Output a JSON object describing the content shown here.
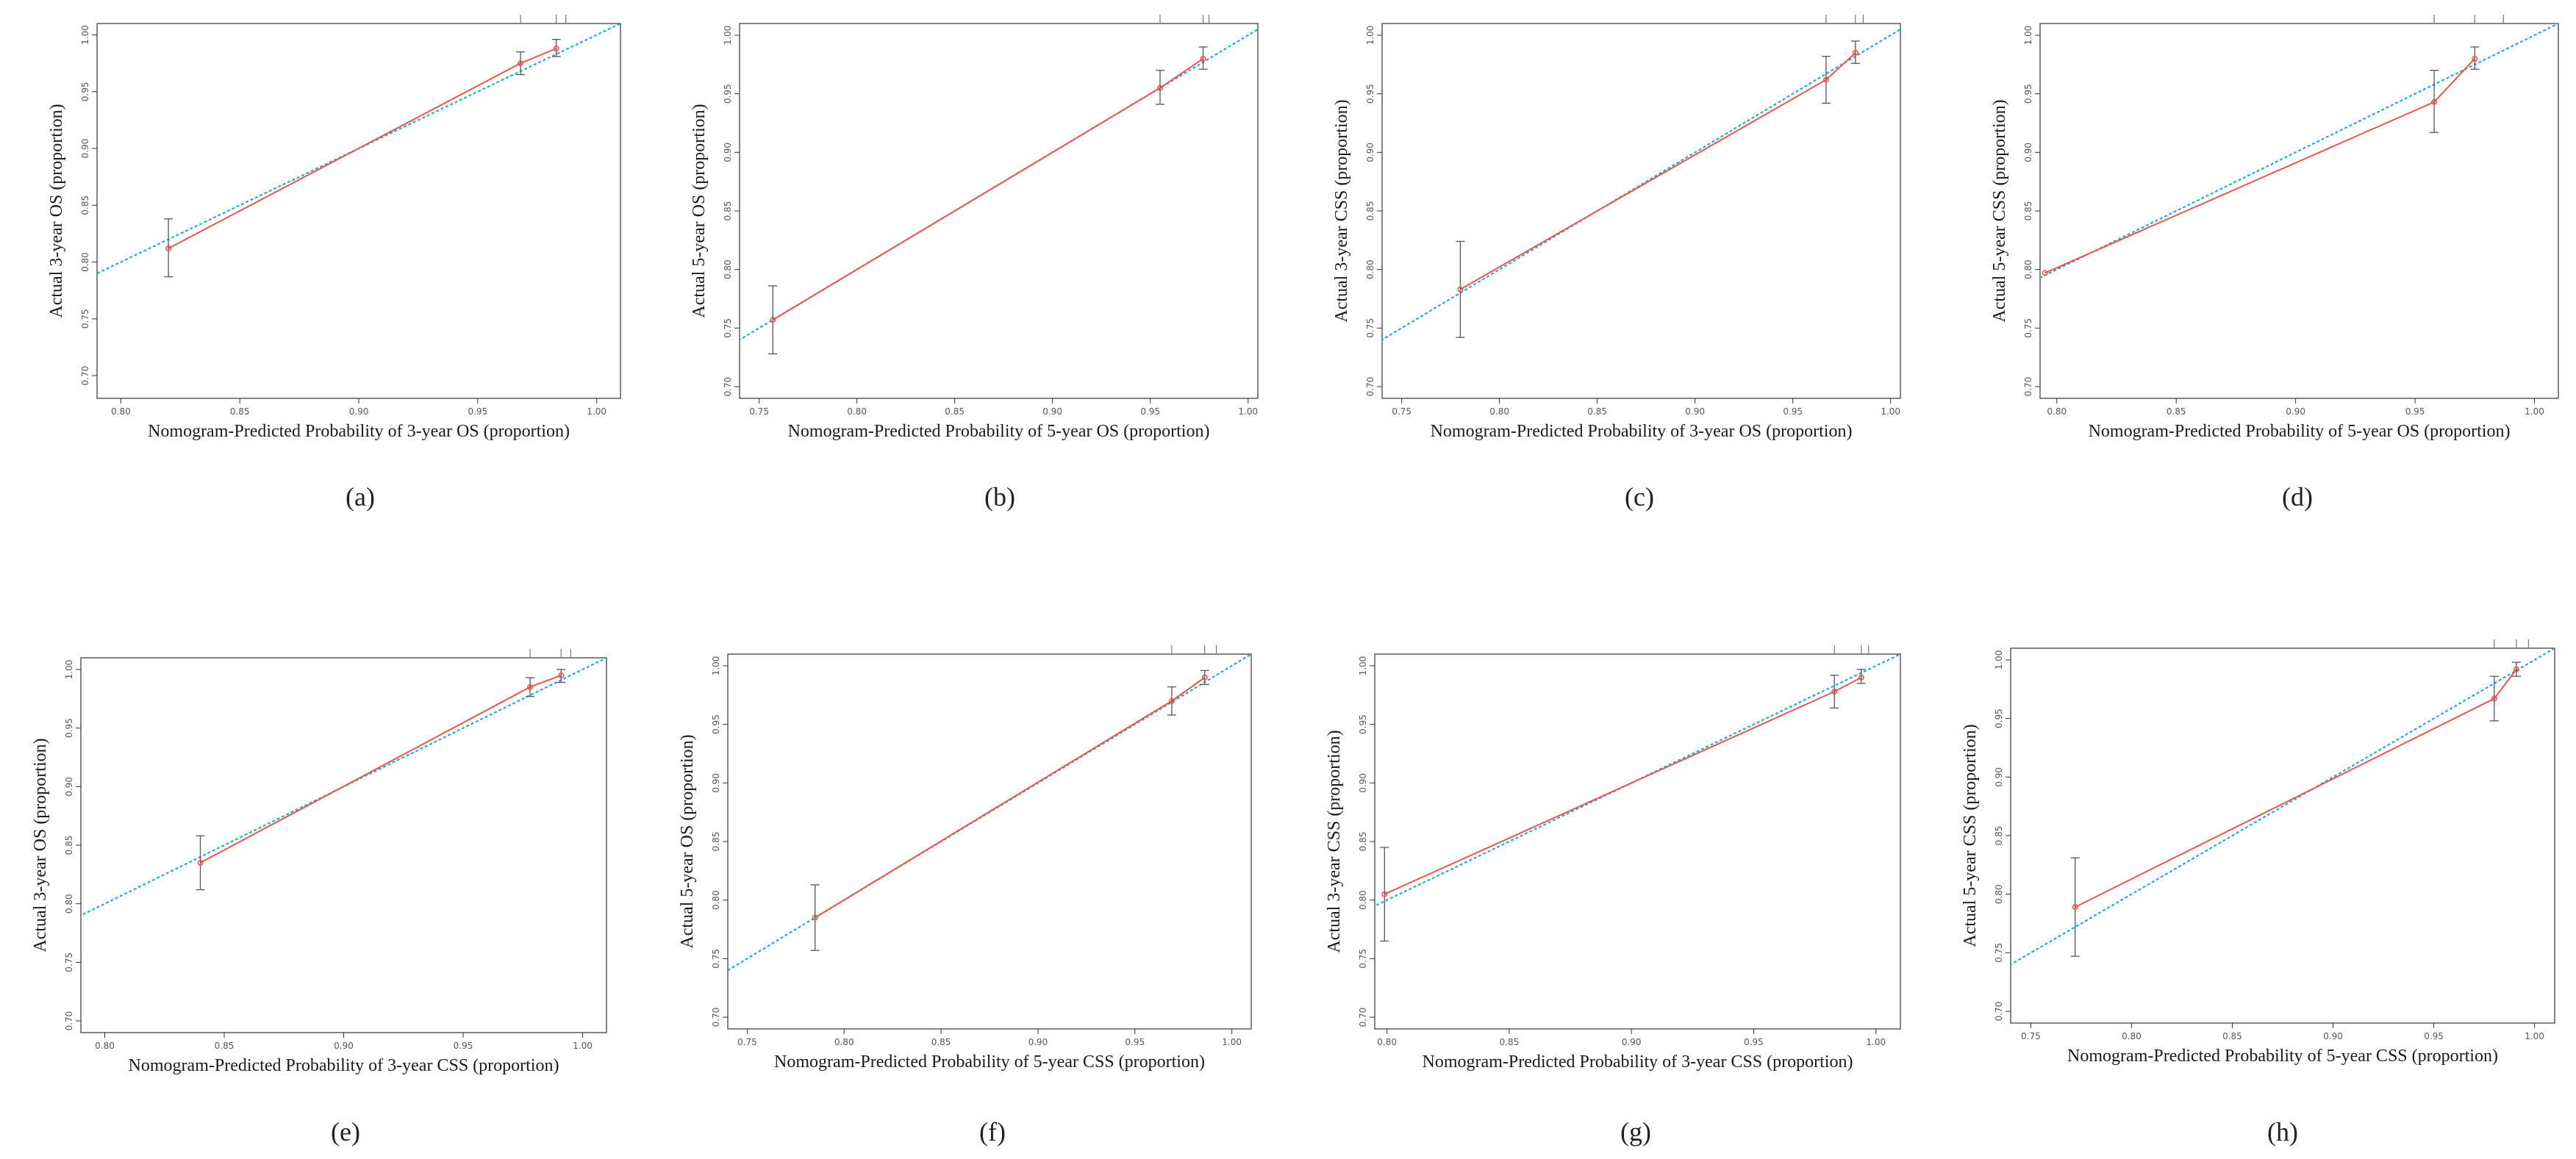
{
  "colors": {
    "ideal_line": "#2aa7d6",
    "calibration_line": "#e8564f",
    "error_bar": "#555555",
    "axis": "#333333",
    "text": "#1a1a1a"
  },
  "chart_data": [
    {
      "type": "line",
      "panel_label": "(a)",
      "xlabel": "Nomogram-Predicted Probability of 3-year OS (proportion)",
      "ylabel": "Actual 3-year OS (proportion)",
      "xlim": [
        0.79,
        1.01
      ],
      "ylim": [
        0.68,
        1.01
      ],
      "xticks": [
        "0.80",
        "0.85",
        "0.90",
        "0.95",
        "1.00"
      ],
      "yticks": [
        "0.70",
        "0.75",
        "0.80",
        "0.85",
        "0.90",
        "0.95",
        "1.00"
      ],
      "calibration": {
        "x": [
          0.82,
          0.968,
          0.983
        ],
        "y": [
          0.812,
          0.975,
          0.988
        ],
        "err_low": [
          0.787,
          0.965,
          0.981
        ],
        "err_high": [
          0.838,
          0.985,
          0.996
        ]
      },
      "rug": [
        0.968,
        0.983,
        0.987
      ]
    },
    {
      "type": "line",
      "panel_label": "(b)",
      "xlabel": "Nomogram-Predicted Probability of 5-year OS (proportion)",
      "ylabel": "Actual 5-year OS (proportion)",
      "xlim": [
        0.74,
        1.005
      ],
      "ylim": [
        0.69,
        1.01
      ],
      "xticks": [
        "0.75",
        "0.80",
        "0.85",
        "0.90",
        "0.95",
        "1.00"
      ],
      "yticks": [
        "0.70",
        "0.75",
        "0.80",
        "0.85",
        "0.90",
        "0.95",
        "1.00"
      ],
      "calibration": {
        "x": [
          0.757,
          0.955,
          0.977
        ],
        "y": [
          0.757,
          0.955,
          0.98
        ],
        "err_low": [
          0.728,
          0.941,
          0.971
        ],
        "err_high": [
          0.786,
          0.97,
          0.99
        ]
      },
      "rug": [
        0.955,
        0.977,
        0.98
      ]
    },
    {
      "type": "line",
      "panel_label": "(c)",
      "xlabel": "Nomogram-Predicted Probability of 3-year OS (proportion)",
      "ylabel": "Actual 3-year CSS (proportion)",
      "xlim": [
        0.74,
        1.005
      ],
      "ylim": [
        0.69,
        1.01
      ],
      "xticks": [
        "0.75",
        "0.80",
        "0.85",
        "0.90",
        "0.95",
        "1.00"
      ],
      "yticks": [
        "0.70",
        "0.75",
        "0.80",
        "0.85",
        "0.90",
        "0.95",
        "1.00"
      ],
      "calibration": {
        "x": [
          0.78,
          0.967,
          0.982
        ],
        "y": [
          0.783,
          0.962,
          0.985
        ],
        "err_low": [
          0.742,
          0.942,
          0.976
        ],
        "err_high": [
          0.824,
          0.982,
          0.995
        ]
      },
      "rug": [
        0.967,
        0.982,
        0.986
      ]
    },
    {
      "type": "line",
      "panel_label": "(d)",
      "xlabel": "Nomogram-Predicted Probability of 5-year OS (proportion)",
      "ylabel": "Actual 5-year CSS (proportion)",
      "xlim": [
        0.793,
        1.01
      ],
      "ylim": [
        0.69,
        1.01
      ],
      "xticks": [
        "0.80",
        "0.85",
        "0.90",
        "0.95",
        "1.00"
      ],
      "yticks": [
        "0.70",
        "0.75",
        "0.80",
        "0.85",
        "0.90",
        "0.95",
        "1.00"
      ],
      "calibration": {
        "x": [
          0.795,
          0.958,
          0.975
        ],
        "y": [
          0.797,
          0.943,
          0.98
        ],
        "err_low": [
          0.797,
          0.917,
          0.971
        ],
        "err_high": [
          0.797,
          0.97,
          0.99
        ]
      },
      "rug": [
        0.958,
        0.975,
        0.987
      ]
    },
    {
      "type": "line",
      "panel_label": "(e)",
      "xlabel": "Nomogram-Predicted Probability of 3-year CSS (proportion)",
      "ylabel": "Actual 3-year OS (proportion)",
      "xlim": [
        0.79,
        1.01
      ],
      "ylim": [
        0.69,
        1.01
      ],
      "xticks": [
        "0.80",
        "0.85",
        "0.90",
        "0.95",
        "1.00"
      ],
      "yticks": [
        "0.70",
        "0.75",
        "0.80",
        "0.85",
        "0.90",
        "0.95",
        "1.00"
      ],
      "calibration": {
        "x": [
          0.84,
          0.978,
          0.991
        ],
        "y": [
          0.835,
          0.985,
          0.995
        ],
        "err_low": [
          0.812,
          0.977,
          0.989
        ],
        "err_high": [
          0.858,
          0.993,
          1.0
        ]
      },
      "rug": [
        0.978,
        0.991,
        0.995
      ]
    },
    {
      "type": "line",
      "panel_label": "(f)",
      "xlabel": "Nomogram-Predicted Probability of 5-year CSS (proportion)",
      "ylabel": "Actual 5-year OS (proportion)",
      "xlim": [
        0.74,
        1.01
      ],
      "ylim": [
        0.69,
        1.01
      ],
      "xticks": [
        "0.75",
        "0.80",
        "0.85",
        "0.90",
        "0.95",
        "1.00"
      ],
      "yticks": [
        "0.70",
        "0.75",
        "0.80",
        "0.85",
        "0.90",
        "0.95",
        "1.00"
      ],
      "calibration": {
        "x": [
          0.785,
          0.969,
          0.986
        ],
        "y": [
          0.785,
          0.97,
          0.99
        ],
        "err_low": [
          0.757,
          0.958,
          0.984
        ],
        "err_high": [
          0.813,
          0.982,
          0.996
        ]
      },
      "rug": [
        0.969,
        0.986,
        0.992
      ]
    },
    {
      "type": "line",
      "panel_label": "(g)",
      "xlabel": "Nomogram-Predicted Probability of 3-year CSS (proportion)",
      "ylabel": "Actual 3-year CSS (proportion)",
      "xlim": [
        0.795,
        1.01
      ],
      "ylim": [
        0.69,
        1.01
      ],
      "xticks": [
        "0.80",
        "0.85",
        "0.90",
        "0.95",
        "1.00"
      ],
      "yticks": [
        "0.70",
        "0.75",
        "0.80",
        "0.85",
        "0.90",
        "0.95",
        "1.00"
      ],
      "calibration": {
        "x": [
          0.799,
          0.983,
          0.994
        ],
        "y": [
          0.805,
          0.978,
          0.99
        ],
        "err_low": [
          0.765,
          0.964,
          0.985
        ],
        "err_high": [
          0.845,
          0.992,
          0.997
        ]
      },
      "rug": [
        0.983,
        0.994,
        0.997
      ]
    },
    {
      "type": "line",
      "panel_label": "(h)",
      "xlabel": "Nomogram-Predicted Probability of 5-year CSS (proportion)",
      "ylabel": "Actual 5-year CSS (proportion)",
      "xlim": [
        0.74,
        1.01
      ],
      "ylim": [
        0.69,
        1.01
      ],
      "xticks": [
        "0.75",
        "0.80",
        "0.85",
        "0.90",
        "0.95",
        "1.00"
      ],
      "yticks": [
        "0.70",
        "0.75",
        "0.80",
        "0.85",
        "0.90",
        "0.95",
        "1.00"
      ],
      "calibration": {
        "x": [
          0.772,
          0.98,
          0.991
        ],
        "y": [
          0.789,
          0.967,
          0.992
        ],
        "err_low": [
          0.747,
          0.948,
          0.986
        ],
        "err_high": [
          0.831,
          0.986,
          0.998
        ]
      },
      "rug": [
        0.98,
        0.991,
        0.997
      ]
    }
  ]
}
